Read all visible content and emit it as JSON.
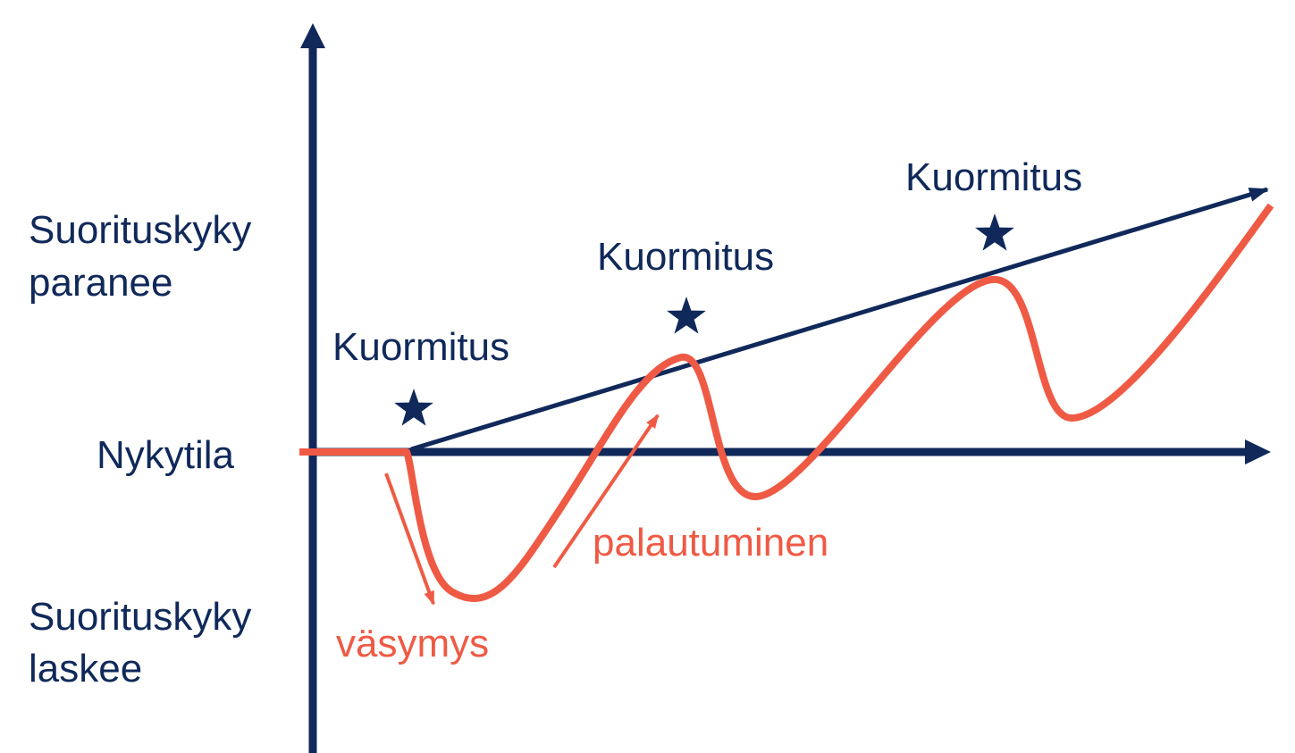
{
  "axis_labels": {
    "up": [
      "Suorituskyky",
      "paranee"
    ],
    "baseline": "Nykytila",
    "down": [
      "Suorituskyky",
      "laskee"
    ]
  },
  "loads": [
    "Kuormitus",
    "Kuormitus",
    "Kuormitus"
  ],
  "phases": {
    "fatigue": "väsymys",
    "recovery": "palautuminen"
  }
}
